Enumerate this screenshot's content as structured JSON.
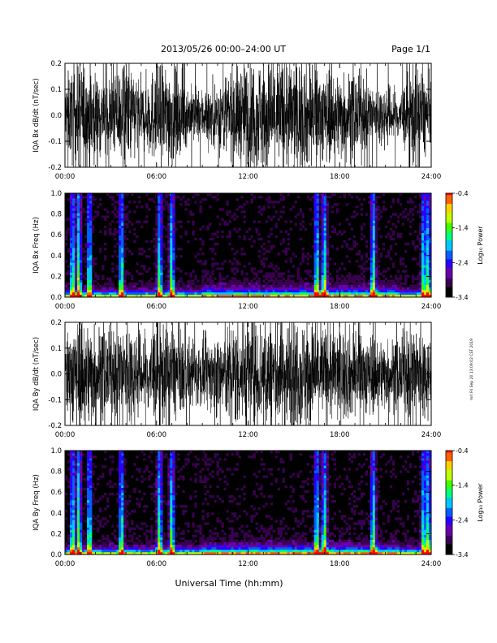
{
  "header": {
    "title": "2013/05/26  00:00–24:00 UT",
    "page": "Page 1/1"
  },
  "footer": {
    "xlabel": "Universal Time (hh:mm)",
    "stamp": "mrl Fri Sep 20 13:09:02 CST 2019"
  },
  "colors": {
    "trace": "#000000",
    "spectrogram_background": "#000000",
    "colormap": [
      "#000000",
      "#3a0050",
      "#6a00a8",
      "#2a00ff",
      "#0060ff",
      "#00c8ff",
      "#00ff80",
      "#40ff00",
      "#c0ff00",
      "#ffd000",
      "#ff6000",
      "#ff0000"
    ]
  },
  "chart_data": [
    {
      "type": "line",
      "title": "",
      "ylabel": "IQA Bx dB/dt (nT/sec)",
      "xlabel": "",
      "x_ticks": [
        "00:00",
        "06:00",
        "12:00",
        "18:00",
        "24:00"
      ],
      "y_ticks": [
        "-0.2",
        "-0.1",
        "0.0",
        "0.1",
        "0.2"
      ],
      "xlim": [
        0,
        24
      ],
      "ylim": [
        -0.2,
        0.2
      ],
      "x_unit": "hours UT",
      "series": [
        {
          "values_description_hours": [
            0,
            1,
            2,
            3,
            4,
            5,
            6,
            7,
            8,
            9,
            10,
            11,
            12,
            13,
            14,
            15,
            16,
            17,
            18,
            19,
            20,
            21,
            22,
            23,
            24
          ],
          "envelope_amplitude": [
            0.12,
            0.2,
            0.15,
            0.13,
            0.2,
            0.11,
            0.17,
            0.18,
            0.1,
            0.09,
            0.12,
            0.16,
            0.19,
            0.2,
            0.2,
            0.2,
            0.18,
            0.16,
            0.15,
            0.14,
            0.12,
            0.1,
            0.09,
            0.2,
            0.1
          ]
        }
      ]
    },
    {
      "type": "heatmap",
      "title": "",
      "ylabel": "IQA Bx Freq (Hz)",
      "xlabel": "",
      "x_ticks": [
        "00:00",
        "06:00",
        "12:00",
        "18:00",
        "24:00"
      ],
      "y_ticks": [
        "0.0",
        "0.2",
        "0.4",
        "0.6",
        "0.8",
        "1.0"
      ],
      "xlim": [
        0,
        24
      ],
      "ylim": [
        0,
        1
      ],
      "colorbar_label": "Log₁₀ Power",
      "colorbar_ticks": [
        "-0.4",
        "-1.4",
        "-2.4",
        "-3.4"
      ],
      "colorbar_range": [
        -3.4,
        -0.4
      ],
      "spike_hours": [
        0.5,
        0.9,
        1.6,
        3.7,
        6.2,
        7.0,
        16.5,
        17.0,
        20.2,
        23.5,
        23.8
      ]
    },
    {
      "type": "line",
      "title": "",
      "ylabel": "IQA By dB/dt (nT/sec)",
      "xlabel": "",
      "x_ticks": [
        "00:00",
        "06:00",
        "12:00",
        "18:00",
        "24:00"
      ],
      "y_ticks": [
        "-0.2",
        "-0.1",
        "0.0",
        "0.1",
        "0.2"
      ],
      "xlim": [
        0,
        24
      ],
      "ylim": [
        -0.2,
        0.2
      ],
      "x_unit": "hours UT",
      "series": [
        {
          "values_description_hours": [
            0,
            1,
            2,
            3,
            4,
            5,
            6,
            7,
            8,
            9,
            10,
            11,
            12,
            13,
            14,
            15,
            16,
            17,
            18,
            19,
            20,
            21,
            22,
            23,
            24
          ],
          "envelope_amplitude": [
            0.15,
            0.2,
            0.17,
            0.14,
            0.2,
            0.13,
            0.18,
            0.17,
            0.12,
            0.11,
            0.14,
            0.18,
            0.2,
            0.2,
            0.2,
            0.2,
            0.19,
            0.17,
            0.16,
            0.15,
            0.14,
            0.12,
            0.12,
            0.2,
            0.12
          ]
        }
      ]
    },
    {
      "type": "heatmap",
      "title": "",
      "ylabel": "IQA By Freq (Hz)",
      "xlabel": "Universal Time (hh:mm)",
      "x_ticks": [
        "00:00",
        "06:00",
        "12:00",
        "18:00",
        "24:00"
      ],
      "y_ticks": [
        "0.0",
        "0.2",
        "0.4",
        "0.6",
        "0.8",
        "1.0"
      ],
      "xlim": [
        0,
        24
      ],
      "ylim": [
        0,
        1
      ],
      "colorbar_label": "Log₁₀ Power",
      "colorbar_ticks": [
        "-0.4",
        "-1.4",
        "-2.4",
        "-3.4"
      ],
      "colorbar_range": [
        -3.4,
        -0.4
      ],
      "spike_hours": [
        0.5,
        0.9,
        1.6,
        3.7,
        6.2,
        7.0,
        16.5,
        17.0,
        20.2,
        23.5,
        23.8
      ]
    }
  ]
}
